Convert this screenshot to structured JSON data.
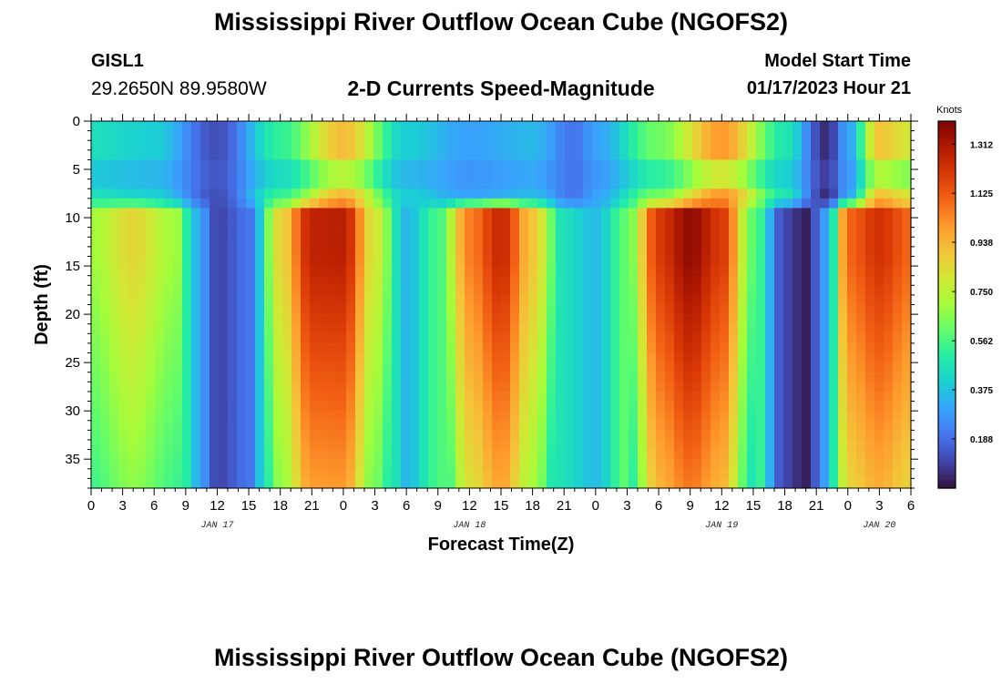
{
  "header": {
    "title": "Mississippi River Outflow Ocean Cube (NGOFS2)",
    "station_id": "GISL1",
    "station_coords": "29.2650N  89.9580W",
    "subtitle": "2-D Currents Speed-Magnitude",
    "model_label": "Model Start Time",
    "model_value": "01/17/2023 Hour 21"
  },
  "footer": {
    "title": "Mississippi River Outflow Ocean Cube (NGOFS2)"
  },
  "colors": {
    "colormap": [
      "#30123b",
      "#4145ab",
      "#4675ed",
      "#39a2fc",
      "#1bcfd4",
      "#24eca6",
      "#61fc6c",
      "#a4fc3b",
      "#d1e834",
      "#f3c63a",
      "#fe9b2d",
      "#f36315",
      "#d93806",
      "#b11901",
      "#7a0403"
    ]
  },
  "chart_data": {
    "type": "heatmap",
    "xlabel": "Forecast Time(Z)",
    "ylabel": "Depth (ft)",
    "x_unit": "forecast hours from 2023-01-17 00Z",
    "xlim": [
      0,
      78
    ],
    "ylim": [
      38,
      0
    ],
    "x_tick_values": [
      0,
      3,
      6,
      9,
      12,
      15,
      18,
      21,
      24,
      27,
      30,
      33,
      36,
      39,
      42,
      45,
      48,
      51,
      54,
      57,
      60,
      63,
      66,
      69,
      72,
      75,
      78
    ],
    "x_tick_labels": [
      "0",
      "3",
      "6",
      "9",
      "12",
      "15",
      "18",
      "21",
      "0",
      "3",
      "6",
      "9",
      "12",
      "15",
      "18",
      "21",
      "0",
      "3",
      "6",
      "9",
      "12",
      "15",
      "18",
      "21",
      "0",
      "3",
      "6"
    ],
    "y_tick_values": [
      0,
      5,
      10,
      15,
      20,
      25,
      30,
      35
    ],
    "y_tick_labels": [
      "0",
      "5",
      "10",
      "15",
      "20",
      "25",
      "30",
      "35"
    ],
    "date_labels": [
      {
        "hour": 12,
        "text": "JAN 17"
      },
      {
        "hour": 36,
        "text": "JAN 18"
      },
      {
        "hour": 60,
        "text": "JAN 19"
      },
      {
        "hour": 75,
        "text": "JAN 20"
      }
    ],
    "colorbar": {
      "label": "Knots",
      "min": 0.0,
      "max": 1.4,
      "ticks": [
        1.312,
        1.125,
        0.938,
        0.75,
        0.562,
        0.375,
        0.188
      ],
      "tick_labels": [
        "1.312",
        "1.125",
        "0.938",
        "0.750",
        "0.562",
        "0.375",
        "0.188"
      ]
    },
    "surface_layer": {
      "depth_range_ft": [
        0,
        8
      ],
      "time_hours": [
        0,
        6,
        12,
        18,
        24,
        30,
        36,
        42,
        46,
        48,
        54,
        60,
        66,
        70,
        72,
        75,
        78
      ],
      "speed_knots": [
        0.45,
        0.4,
        0.12,
        0.52,
        0.92,
        0.4,
        0.3,
        0.35,
        0.2,
        0.3,
        0.62,
        1.0,
        0.48,
        0.05,
        0.3,
        0.9,
        0.8
      ]
    },
    "subsurface_layer": {
      "depth_range_ft": [
        9,
        38
      ],
      "time_hours": [
        0,
        4,
        8,
        10,
        12,
        15,
        18,
        21,
        24,
        27,
        30,
        33,
        36,
        39,
        42,
        45,
        48,
        51,
        54,
        57,
        60,
        63,
        66,
        68,
        70,
        72,
        75,
        78
      ],
      "speed_knots": [
        0.7,
        0.85,
        0.7,
        0.35,
        0.1,
        0.2,
        0.85,
        1.27,
        1.28,
        0.8,
        0.35,
        0.55,
        1.05,
        1.25,
        0.9,
        0.45,
        0.36,
        0.6,
        1.2,
        1.36,
        1.2,
        0.6,
        0.1,
        0.03,
        0.3,
        1.1,
        1.22,
        1.1
      ]
    }
  }
}
